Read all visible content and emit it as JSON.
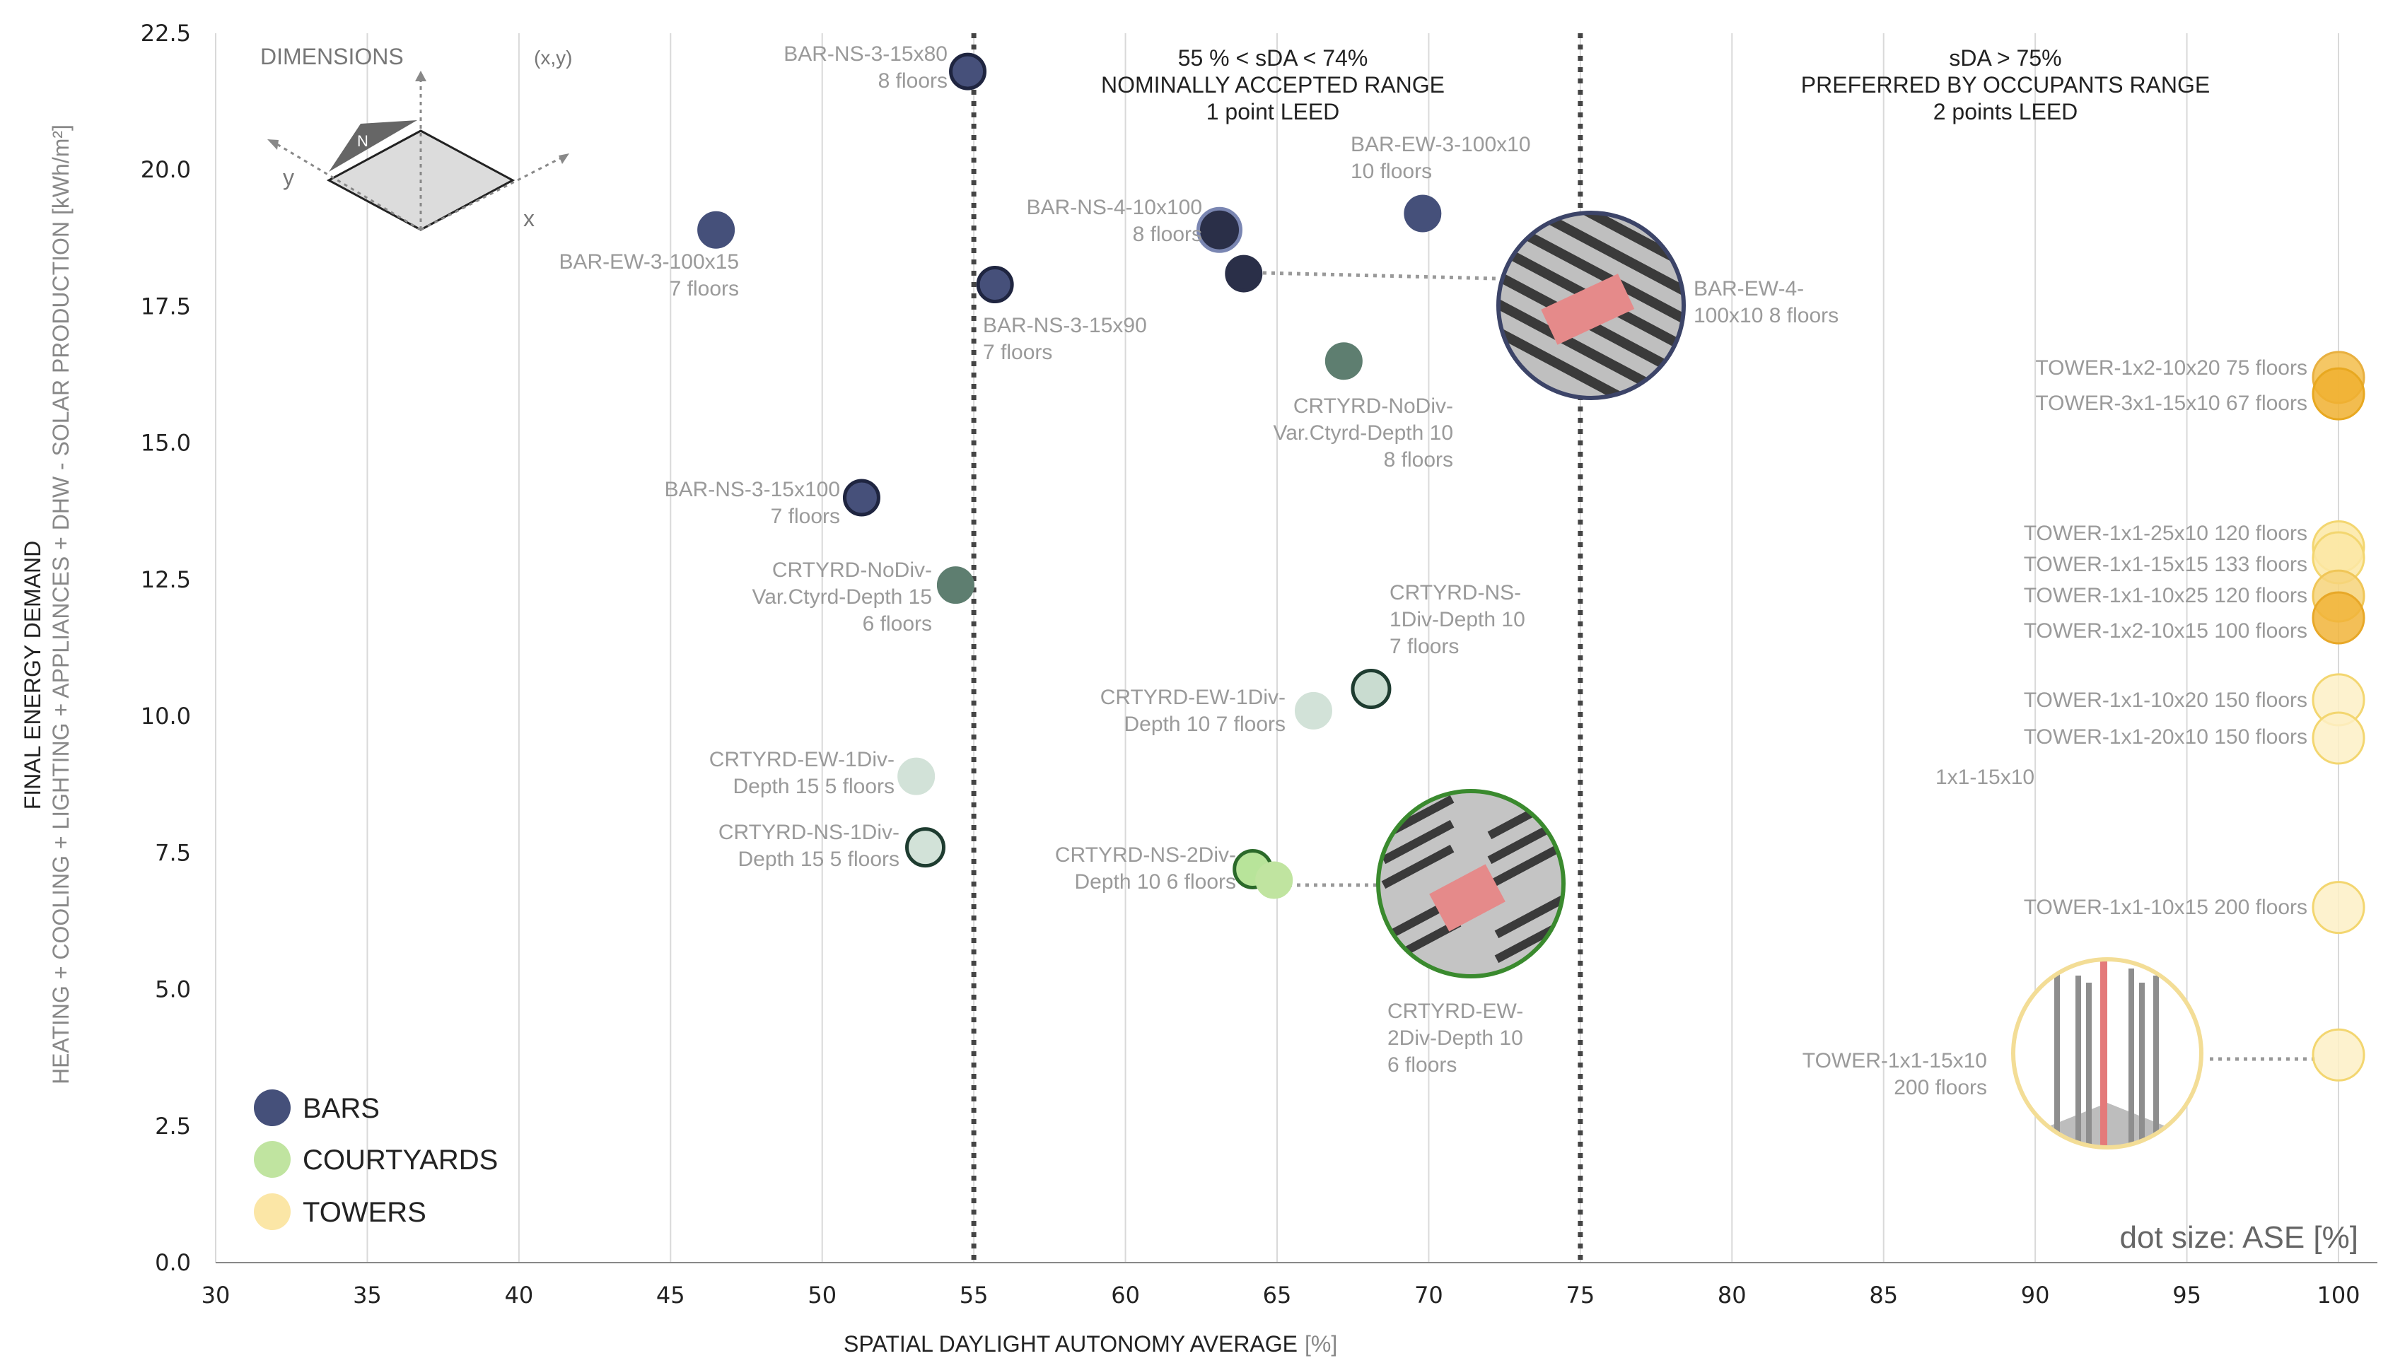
{
  "chart_data": {
    "type": "scatter",
    "title": "",
    "xlabel": "SPATIAL DAYLIGHT AUTONOMY AVERAGE",
    "xlabel_unit": "[%]",
    "ylabel_main": "FINAL ENERGY DEMAND",
    "ylabel_sub": "HEATING + COOLING + LIGHTING + APPLIANCES + DHW - SOLAR PRODUCTION [kWh/m²]",
    "xlim": [
      30,
      100
    ],
    "ylim": [
      0,
      22.5
    ],
    "x_ticks": [
      "30",
      "35",
      "40",
      "45",
      "50",
      "55",
      "60",
      "65",
      "70",
      "75",
      "80",
      "85",
      "90",
      "95",
      "100"
    ],
    "y_ticks": [
      "0.0",
      "2.5",
      "5.0",
      "7.5",
      "10.0",
      "12.5",
      "15.0",
      "17.5",
      "20.0",
      "22.5"
    ],
    "thresholds": [
      55,
      75
    ],
    "range_headers": [
      {
        "lines": [
          "55 % < sDA < 74%",
          "NOMINALLY ACCEPTED RANGE",
          "1 point LEED"
        ]
      },
      {
        "lines": [
          "sDA > 75%",
          "PREFERRED BY OCCUPANTS RANGE",
          "2 points LEED"
        ]
      }
    ],
    "dimensions_label": "DIMENSIONS",
    "dimensions_coord": "(x,y)",
    "dimensions_axes": {
      "x": "x",
      "y": "y",
      "north": "N"
    },
    "size_note": "dot size: ASE [%]",
    "legend": [
      {
        "name": "BARS",
        "color": "#45507a"
      },
      {
        "name": "COURTYARDS",
        "color": "#c0e4a0"
      },
      {
        "name": "TOWERS",
        "color": "#fbe6a6"
      }
    ],
    "points": [
      {
        "label": [
          "BAR-NS-3-15x80",
          "8 floors"
        ],
        "x": 54.8,
        "y": 21.8,
        "group": "bars",
        "fill": "#46507a",
        "stroke": "#1f2540"
      },
      {
        "label": [
          "BAR-EW-3-100x15",
          "7 floors"
        ],
        "x": 46.5,
        "y": 18.9,
        "group": "bars",
        "fill": "#45507a",
        "stroke": "#45507a"
      },
      {
        "label": [
          "BAR-NS-3-15x90",
          "7 floors"
        ],
        "x": 55.7,
        "y": 17.9,
        "group": "bars",
        "fill": "#46507a",
        "stroke": "#1f2540"
      },
      {
        "label": [
          "BAR-NS-4-10x100",
          "8 floors"
        ],
        "x": 63.1,
        "y": 18.9,
        "group": "bars",
        "fill": "#2a2f48",
        "stroke": "#7a86b2"
      },
      {
        "label": [
          "BAR-EW-4-",
          "100x10  8 floors"
        ],
        "x": 63.9,
        "y": 18.1,
        "group": "bars",
        "fill": "#2a2f48",
        "stroke": "#2a2f48"
      },
      {
        "label": [
          "BAR-EW-3-100x10",
          "10 floors"
        ],
        "x": 69.8,
        "y": 19.2,
        "group": "bars",
        "fill": "#45507a",
        "stroke": "#45507a"
      },
      {
        "label": [
          "BAR-NS-3-15x100",
          "7 floors"
        ],
        "x": 51.3,
        "y": 14.0,
        "group": "bars",
        "fill": "#46507a",
        "stroke": "#1f2540"
      },
      {
        "label": [
          "CRTYRD-NoDiv-",
          "Var.Ctyrd-Depth 10",
          "8 floors"
        ],
        "x": 67.2,
        "y": 16.5,
        "group": "courtyards",
        "fill": "#5e7e70",
        "stroke": "#5e7e70"
      },
      {
        "label": [
          "CRTYRD-NoDiv-",
          "Var.Ctyrd-Depth 15",
          "6 floors"
        ],
        "x": 54.4,
        "y": 12.4,
        "group": "courtyards",
        "fill": "#5e7e70",
        "stroke": "#5e7e70"
      },
      {
        "label": [
          "CRTYRD-NS-",
          "1Div-Depth 10",
          "7 floors"
        ],
        "x": 68.1,
        "y": 10.5,
        "group": "courtyards",
        "fill": "#c9dcd0",
        "stroke": "#1e3c30"
      },
      {
        "label": [
          "CRTYRD-EW-1Div-",
          "Depth 10  7 floors"
        ],
        "x": 66.2,
        "y": 10.1,
        "group": "courtyards",
        "fill": "#d2e2d8",
        "stroke": "#d2e2d8"
      },
      {
        "label": [
          "CRTYRD-EW-1Div-",
          "Depth 15  5 floors"
        ],
        "x": 53.1,
        "y": 8.9,
        "group": "courtyards",
        "fill": "#d2e2d8",
        "stroke": "#d2e2d8"
      },
      {
        "label": [
          "CRTYRD-NS-1Div-",
          "Depth 15  5 floors"
        ],
        "x": 53.4,
        "y": 7.6,
        "group": "courtyards",
        "fill": "#d2e2d8",
        "stroke": "#1e3c30"
      },
      {
        "label": [
          "CRTYRD-NS-2Div-",
          "Depth 10  6 floors"
        ],
        "x": 64.2,
        "y": 7.2,
        "group": "courtyards",
        "fill": "#b8e49a",
        "stroke": "#2b6a2a"
      },
      {
        "label": [
          "CRTYRD-EW-",
          "2Div-Depth 10",
          "6 floors"
        ],
        "x": 64.9,
        "y": 7.0,
        "group": "courtyards",
        "fill": "#c0e4a0",
        "stroke": "#c0e4a0"
      },
      {
        "label": [
          "TOWER-1x2-10x20  75 floors"
        ],
        "x": 100,
        "y": 16.2,
        "group": "towers",
        "fill": "#f3bd4a",
        "stroke": "#e8b040"
      },
      {
        "label": [
          "TOWER-3x1-15x10  67 floors"
        ],
        "x": 100,
        "y": 15.9,
        "group": "towers",
        "fill": "#f0b030",
        "stroke": "#e8a820"
      },
      {
        "label": [
          "TOWER-1x1-25x10  120 floors"
        ],
        "x": 100,
        "y": 13.1,
        "group": "towers",
        "fill": "#fbe8a4",
        "stroke": "#f3d670"
      },
      {
        "label": [
          "TOWER-1x1-15x15  133 floors"
        ],
        "x": 100,
        "y": 12.9,
        "group": "towers",
        "fill": "#fbe8a4",
        "stroke": "#f3d670"
      },
      {
        "label": [
          "TOWER-1x1-10x25  120 floors"
        ],
        "x": 100,
        "y": 12.2,
        "group": "towers",
        "fill": "#f6d47a",
        "stroke": "#f0c658"
      },
      {
        "label": [
          "TOWER-1x2-10x15  100 floors"
        ],
        "x": 100,
        "y": 11.8,
        "group": "towers",
        "fill": "#f1b43a",
        "stroke": "#e8a828"
      },
      {
        "label": [
          "TOWER-1x1-10x20  150 floors"
        ],
        "x": 100,
        "y": 10.3,
        "group": "towers",
        "fill": "#fdf0c6",
        "stroke": "#f3d670"
      },
      {
        "label": [
          "TOWER-1x1-20x10  150 floors"
        ],
        "x": 100,
        "y": 9.6,
        "group": "towers",
        "fill": "#fdf0c6",
        "stroke": "#f3d670"
      },
      {
        "label": [
          "1x1-15x10"
        ],
        "x": 88.5,
        "y": 8.9,
        "group": "towers",
        "fill": "none",
        "stroke": "none"
      },
      {
        "label": [
          "TOWER-1x1-10x15  200 floors"
        ],
        "x": 100,
        "y": 6.5,
        "group": "towers",
        "fill": "#fdf0c6",
        "stroke": "#f3d670"
      },
      {
        "label": [
          "TOWER-1x1-15x10",
          "200 floors"
        ],
        "x": 100,
        "y": 3.8,
        "group": "towers",
        "fill": "#fdf0c6",
        "stroke": "#f3d670"
      }
    ]
  }
}
